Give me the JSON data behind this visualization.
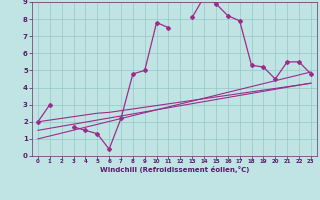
{
  "xlabel": "Windchill (Refroidissement éolien,°C)",
  "x_data": [
    0,
    1,
    2,
    3,
    4,
    5,
    6,
    7,
    8,
    9,
    10,
    11,
    12,
    13,
    14,
    15,
    16,
    17,
    18,
    19,
    20,
    21,
    22,
    23
  ],
  "y_main": [
    2.0,
    3.0,
    null,
    1.7,
    1.5,
    1.3,
    0.4,
    2.2,
    4.8,
    5.0,
    7.8,
    7.5,
    null,
    8.1,
    9.3,
    8.9,
    8.2,
    7.9,
    5.3,
    5.2,
    4.5,
    5.5,
    5.5,
    4.8
  ],
  "y_reg1": [
    2.0,
    2.1,
    2.2,
    2.3,
    2.4,
    2.5,
    2.55,
    2.65,
    2.75,
    2.85,
    2.95,
    3.05,
    3.15,
    3.25,
    3.35,
    3.45,
    3.55,
    3.65,
    3.75,
    3.85,
    3.95,
    4.05,
    4.15,
    4.25
  ],
  "y_reg2": [
    1.5,
    1.62,
    1.74,
    1.86,
    1.98,
    2.1,
    2.22,
    2.34,
    2.46,
    2.58,
    2.7,
    2.82,
    2.94,
    3.06,
    3.18,
    3.3,
    3.42,
    3.54,
    3.66,
    3.78,
    3.9,
    4.02,
    4.14,
    4.26
  ],
  "y_reg3": [
    1.0,
    1.17,
    1.34,
    1.51,
    1.68,
    1.85,
    2.02,
    2.19,
    2.36,
    2.53,
    2.7,
    2.87,
    3.04,
    3.21,
    3.38,
    3.55,
    3.72,
    3.89,
    4.06,
    4.23,
    4.4,
    4.57,
    4.74,
    4.91
  ],
  "line_color": "#9b2d8a",
  "bg_color": "#c0e4e4",
  "grid_color": "#94c8c8",
  "xlim": [
    -0.5,
    23.5
  ],
  "ylim": [
    0,
    9
  ],
  "xticks": [
    0,
    1,
    2,
    3,
    4,
    5,
    6,
    7,
    8,
    9,
    10,
    11,
    12,
    13,
    14,
    15,
    16,
    17,
    18,
    19,
    20,
    21,
    22,
    23
  ],
  "yticks": [
    0,
    1,
    2,
    3,
    4,
    5,
    6,
    7,
    8,
    9
  ]
}
